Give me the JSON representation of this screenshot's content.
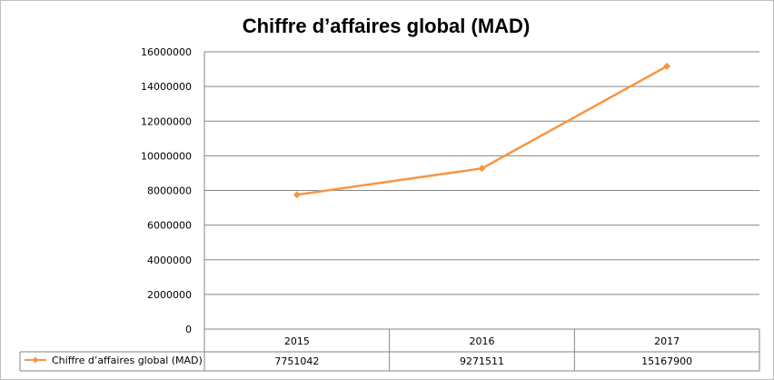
{
  "chart_data": {
    "type": "line",
    "title": "Chiffre d’affaires global (MAD)",
    "categories": [
      "2015",
      "2016",
      "2017"
    ],
    "series": [
      {
        "name": "Chiffre d’affaires global (MAD)",
        "values": [
          7751042,
          9271511,
          15167900
        ],
        "labels": [
          "7751042",
          "9271511",
          "15167900"
        ]
      }
    ],
    "ylim": [
      0,
      16000000
    ],
    "yticks": [
      "0",
      "2000000",
      "4000000",
      "6000000",
      "8000000",
      "10000000",
      "12000000",
      "14000000",
      "16000000"
    ],
    "ytick_values": [
      0,
      2000000,
      4000000,
      6000000,
      8000000,
      10000000,
      12000000,
      14000000,
      16000000
    ],
    "grid": true,
    "legend": "data-table",
    "series_color": "#f79646",
    "grid_color": "#868686"
  }
}
